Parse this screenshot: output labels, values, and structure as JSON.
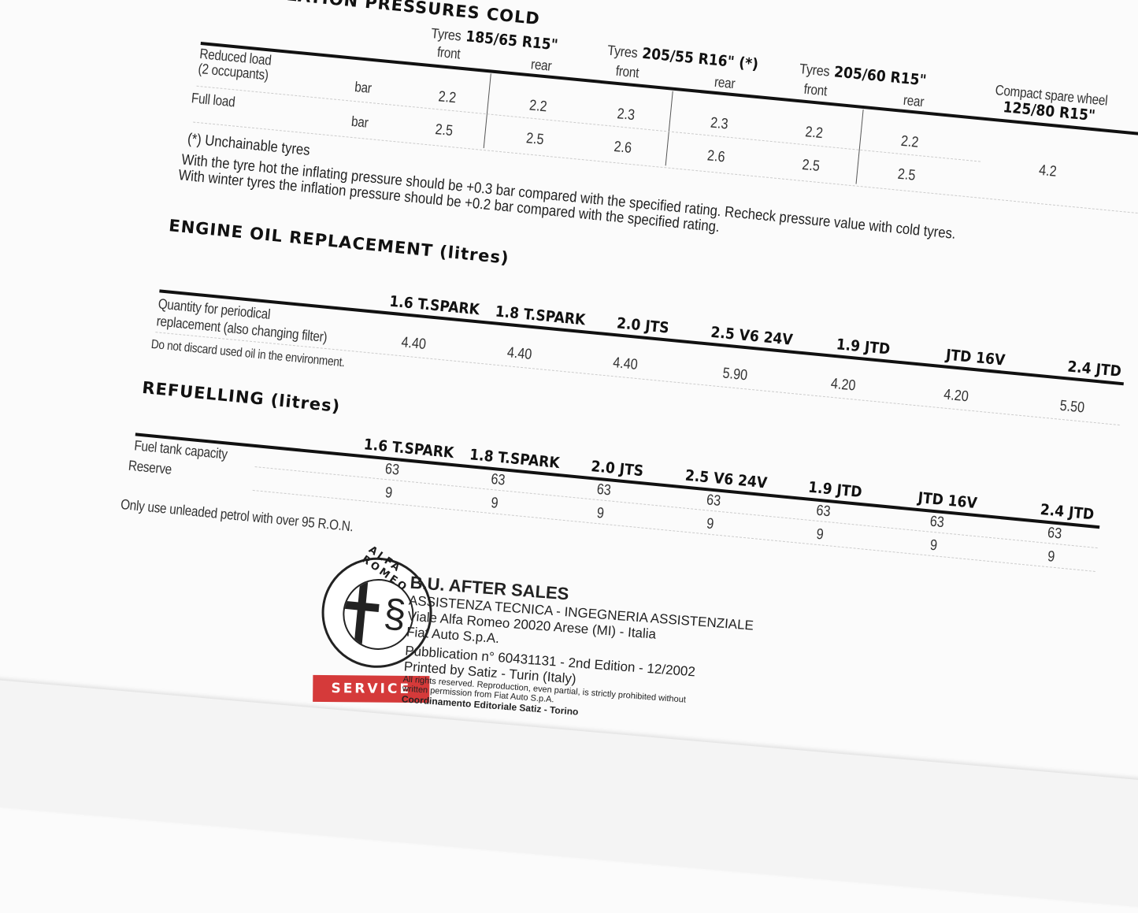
{
  "tyres": {
    "title": "INFLATION PRESSURES COLD",
    "groups": [
      {
        "label": "Tyres",
        "size": "185/65 R15\"",
        "front": "front",
        "rear": "rear",
        "values": [
          [
            "2.2",
            "2.2"
          ],
          [
            "2.5",
            "2.5"
          ]
        ]
      },
      {
        "label": "Tyres",
        "size": "205/55 R16\" (*)",
        "front": "front",
        "rear": "rear",
        "values": [
          [
            "2.3",
            "2.3"
          ],
          [
            "2.6",
            "2.6"
          ]
        ]
      },
      {
        "label": "Tyres",
        "size": "205/60 R15\"",
        "front": "front",
        "rear": "rear",
        "values": [
          [
            "2.2",
            "2.2"
          ],
          [
            "2.5",
            "2.5"
          ]
        ]
      }
    ],
    "spare": {
      "label": "Compact spare wheel",
      "size": "125/80 R15\"",
      "value": "4.2"
    },
    "rows": [
      {
        "label1": "Reduced load",
        "label2": "(2 occupants)",
        "unit": "bar"
      },
      {
        "label1": "Full load",
        "unit": "bar"
      }
    ],
    "note_unchainable": "(*) Unchainable tyres",
    "note_hot": "With the tyre hot the inflating pressure should be +0.3 bar compared with the specified rating. Recheck pressure value with cold tyres.",
    "note_winter": "With winter tyres the inflation pressure should be +0.2 bar compared with the specified rating."
  },
  "oil": {
    "title": "ENGINE OIL REPLACEMENT (litres)",
    "engines": [
      "1.6 T.SPARK",
      "1.8 T.SPARK",
      "2.0 JTS",
      "2.5 V6 24V",
      "1.9 JTD",
      "JTD 16V",
      "2.4 JTD"
    ],
    "row_label1": "Quantity for periodical",
    "row_label2": "replacement (also changing filter)",
    "values": [
      "4.40",
      "4.40",
      "4.40",
      "5.90",
      "4.20",
      "4.20",
      "5.50"
    ],
    "note": "Do not discard used oil in the environment."
  },
  "refuel": {
    "title": "REFUELLING (litres)",
    "engines": [
      "1.6 T.SPARK",
      "1.8 T.SPARK",
      "2.0 JTS",
      "2.5 V6 24V",
      "1.9 JTD",
      "JTD 16V",
      "2.4 JTD"
    ],
    "row1_label": "Fuel tank capacity",
    "row2_label": "Reserve",
    "capacity": [
      "63",
      "63",
      "63",
      "63",
      "63",
      "63",
      "63"
    ],
    "reserve": [
      "9",
      "9",
      "9",
      "9",
      "9",
      "9",
      "9"
    ],
    "note": "Only use unleaded petrol with over 95 R.O.N."
  },
  "footer": {
    "logo_text": "ALFA ROMEO",
    "service": "SERVICE",
    "bu": "B.U. AFTER SALES",
    "line1": "ASSISTENZA TECNICA - INGEGNERIA ASSISTENZIALE",
    "line2": "Viale Alfa Romeo 20020 Arese (MI) - Italia",
    "line3": "Fiat Auto S.p.A.",
    "line4": "Pubblication n° 60431131 - 2nd Edition - 12/2002",
    "line5": "Printed by Satiz - Turin (Italy)",
    "line6": "All rights reserved. Reproduction, even partial, is strictly prohibited without",
    "line7": "written permission from Fiat Auto S.p.A.",
    "line8": "Coordinamento Editoriale Satiz - Torino"
  }
}
